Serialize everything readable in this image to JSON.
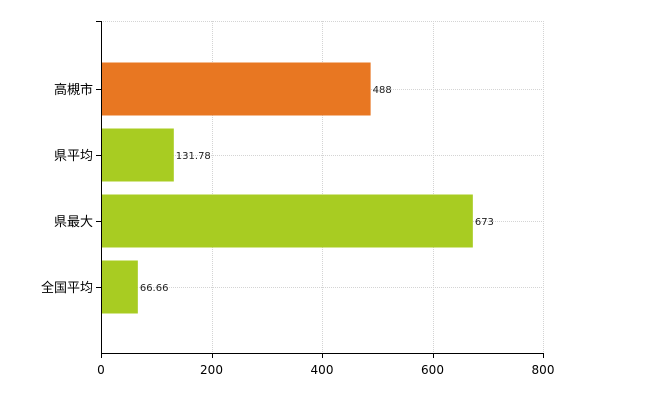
{
  "chart_data": {
    "type": "bar",
    "orientation": "horizontal",
    "categories": [
      "高槻市",
      "県平均",
      "県最大",
      "全国平均"
    ],
    "values": [
      488,
      131.78,
      673,
      66.66
    ],
    "value_labels": [
      "488",
      "131.78",
      "673",
      "66.66"
    ],
    "bar_colors": [
      "#e87722",
      "#a8cc22",
      "#a8cc22",
      "#a8cc22"
    ],
    "xlim": [
      0,
      800
    ],
    "x_ticks": [
      0,
      200,
      400,
      600,
      800
    ],
    "x_tick_labels": [
      "0",
      "200",
      "400",
      "600",
      "800"
    ],
    "title": "",
    "xlabel": "",
    "ylabel": "",
    "grid": true,
    "legend": "none"
  }
}
